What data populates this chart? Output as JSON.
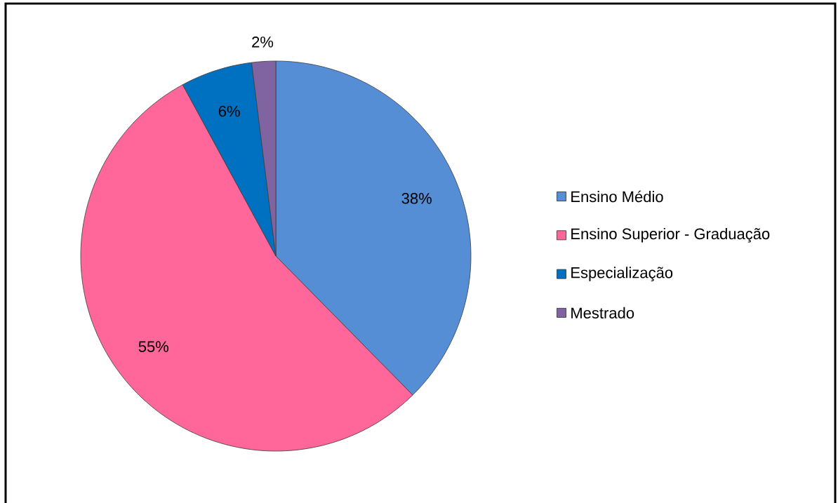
{
  "chart_data": {
    "type": "pie",
    "categories": [
      "Ensino Médio",
      "Ensino Superior - Graduação",
      "Especialização",
      "Mestrado"
    ],
    "values": [
      38,
      55,
      6,
      2
    ],
    "colors": [
      "#558ed5",
      "#ff6699",
      "#0070c0",
      "#8064a2"
    ],
    "value_labels": [
      "38%",
      "55%",
      "6%",
      "2%"
    ],
    "legend": "right"
  }
}
